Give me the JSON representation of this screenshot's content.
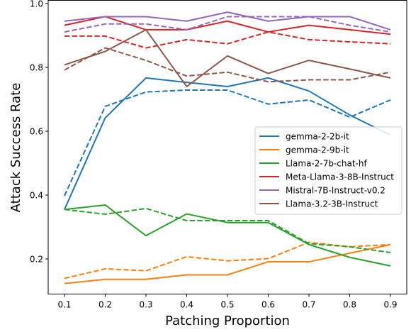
{
  "chart_data": {
    "type": "line",
    "title": "",
    "xlabel": "Patching Proportion",
    "ylabel": "Attack Success Rate",
    "x": [
      0.1,
      0.2,
      0.3,
      0.4,
      0.5,
      0.6,
      0.7,
      0.8,
      0.9
    ],
    "xticks": [
      "0.1",
      "0.2",
      "0.3",
      "0.4",
      "0.5",
      "0.6",
      "0.7",
      "0.8",
      "0.9"
    ],
    "yticks": [
      "0.2",
      "0.4",
      "0.6",
      "0.8",
      "1.0"
    ],
    "ytick_values": [
      0.2,
      0.4,
      0.6,
      0.8,
      1.0
    ],
    "xlim": [
      0.06,
      0.94
    ],
    "ylim": [
      0.09,
      1.01
    ],
    "grid": false,
    "legend_position": "center-right",
    "line_styles": [
      "solid",
      "dashed"
    ],
    "series": [
      {
        "name": "gemma-2-2b-it",
        "color": "#1f77b4",
        "solid": [
          0.355,
          0.642,
          0.767,
          0.753,
          0.74,
          0.767,
          0.726,
          0.651,
          0.588
        ],
        "dashed": [
          0.398,
          0.678,
          0.723,
          0.729,
          0.729,
          0.685,
          0.698,
          0.644,
          0.698
        ]
      },
      {
        "name": "gemma-2-9b-it",
        "color": "#ff7f0e",
        "solid": [
          0.123,
          0.136,
          0.136,
          0.15,
          0.15,
          0.191,
          0.191,
          0.218,
          0.245
        ],
        "dashed": [
          0.139,
          0.169,
          0.163,
          0.207,
          0.194,
          0.201,
          0.252,
          0.238,
          0.245
        ]
      },
      {
        "name": "Llama-2-7b-chat-hf",
        "color": "#2ca02c",
        "solid": [
          0.355,
          0.369,
          0.273,
          0.341,
          0.314,
          0.314,
          0.245,
          0.205,
          0.178
        ],
        "dashed": [
          0.355,
          0.34,
          0.358,
          0.32,
          0.32,
          0.32,
          0.248,
          0.238,
          0.22
        ]
      },
      {
        "name": "Meta-Llama-3-8B-Instruct",
        "color": "#d62728",
        "solid": [
          0.932,
          0.959,
          0.918,
          0.918,
          0.945,
          0.911,
          0.932,
          0.918,
          0.904
        ],
        "dashed": [
          0.898,
          0.898,
          0.861,
          0.887,
          0.874,
          0.911,
          0.887,
          0.88,
          0.874
        ]
      },
      {
        "name": "Mistral-7B-Instruct-v0.2",
        "color": "#9467bd",
        "solid": [
          0.945,
          0.959,
          0.959,
          0.945,
          0.973,
          0.945,
          0.959,
          0.959,
          0.918
        ],
        "dashed": [
          0.911,
          0.936,
          0.936,
          0.918,
          0.959,
          0.959,
          0.959,
          0.932,
          0.911
        ]
      },
      {
        "name": "Llama-3.2-3B-Instruct",
        "color": "#8c564b",
        "solid": [
          0.808,
          0.85,
          0.918,
          0.74,
          0.836,
          0.781,
          0.822,
          0.795,
          0.767
        ],
        "dashed": [
          0.792,
          0.861,
          0.822,
          0.773,
          0.785,
          0.755,
          0.761,
          0.761,
          0.785
        ]
      }
    ]
  }
}
